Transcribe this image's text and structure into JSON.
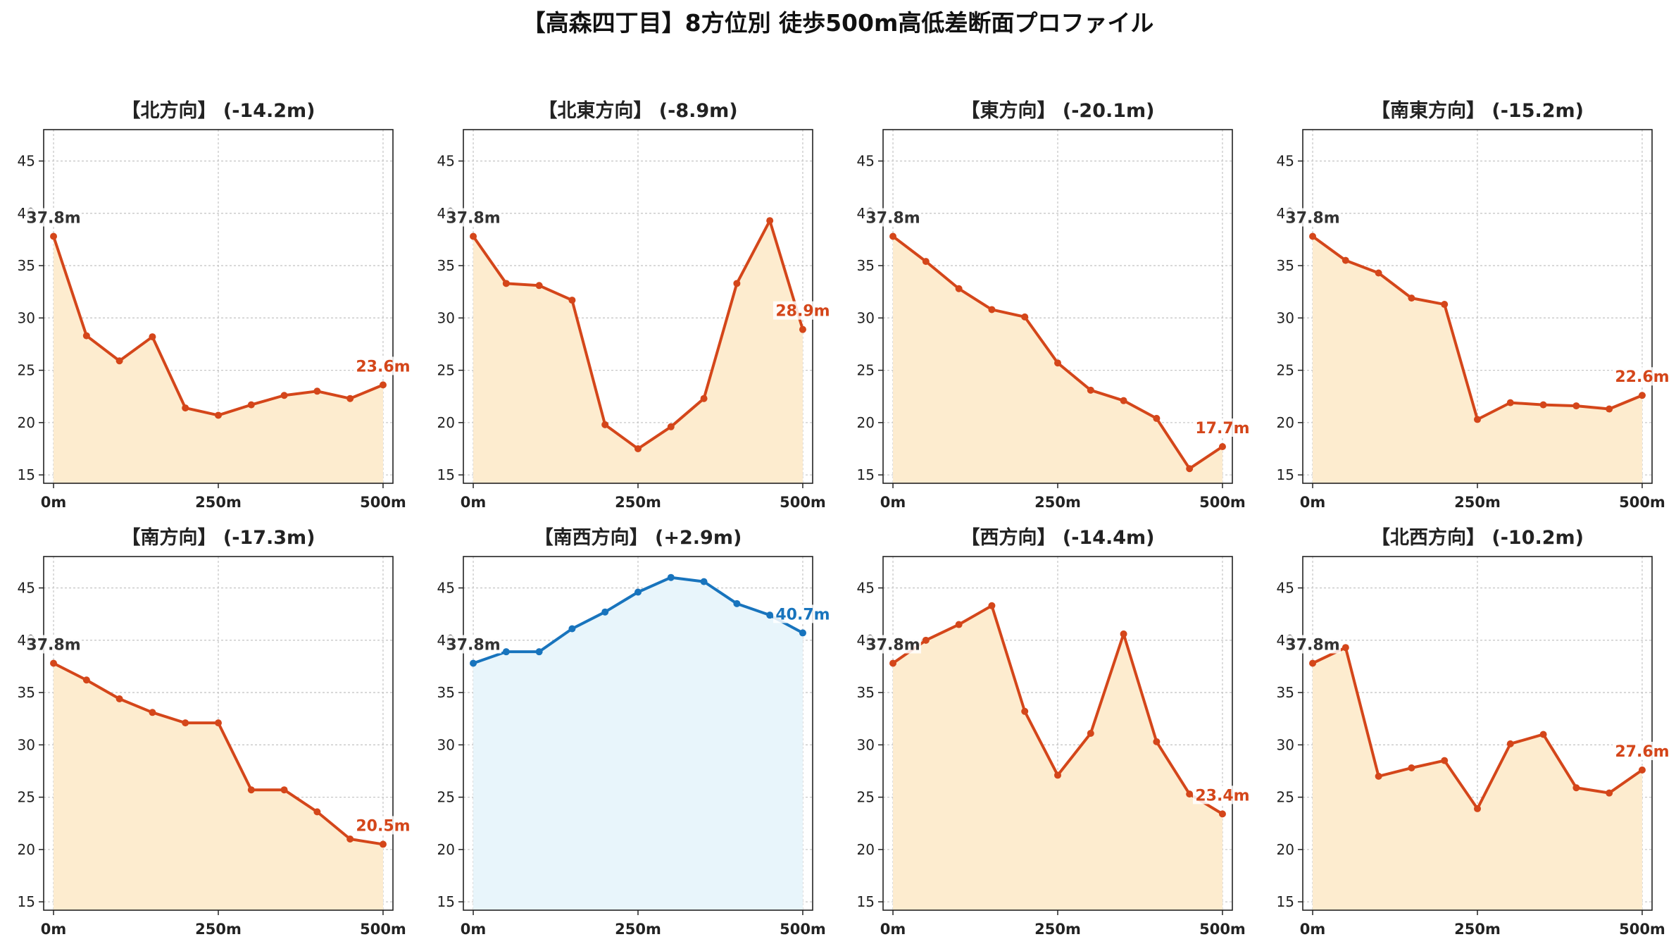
{
  "figure_title": "【高森四丁目】8方位別 徒歩500m高低差断面プロファイル",
  "colors": {
    "down": "#d4461a",
    "up": "#1874bd",
    "fill_down": "#fdeccf",
    "fill_up": "#e8f5fb",
    "start_label": "#333333",
    "grid": "#c8c8c8"
  },
  "chart_data": [
    {
      "type": "area",
      "title": "【北方向】 (-14.2m)",
      "x": [
        0,
        50,
        100,
        150,
        200,
        250,
        300,
        350,
        400,
        450,
        500
      ],
      "values": [
        37.8,
        28.3,
        25.9,
        28.2,
        21.4,
        20.7,
        21.7,
        22.6,
        23.0,
        22.3,
        23.6
      ],
      "start_label": "37.8m",
      "end_label": "23.6m",
      "trend": "down",
      "ylim": [
        14.2,
        48
      ],
      "yticks": [
        15,
        20,
        25,
        30,
        35,
        40,
        45
      ],
      "xticks": [
        0,
        250,
        500
      ],
      "xtick_labels": [
        "0m",
        "250m",
        "500m"
      ],
      "grid": true
    },
    {
      "type": "area",
      "title": "【北東方向】 (-8.9m)",
      "x": [
        0,
        50,
        100,
        150,
        200,
        250,
        300,
        350,
        400,
        450,
        500
      ],
      "values": [
        37.8,
        33.3,
        33.1,
        31.7,
        19.8,
        17.5,
        19.6,
        22.3,
        33.3,
        39.3,
        28.9
      ],
      "start_label": "37.8m",
      "end_label": "28.9m",
      "trend": "down",
      "ylim": [
        14.2,
        48
      ],
      "yticks": [
        15,
        20,
        25,
        30,
        35,
        40,
        45
      ],
      "xticks": [
        0,
        250,
        500
      ],
      "xtick_labels": [
        "0m",
        "250m",
        "500m"
      ],
      "grid": true
    },
    {
      "type": "area",
      "title": "【東方向】 (-20.1m)",
      "x": [
        0,
        50,
        100,
        150,
        200,
        250,
        300,
        350,
        400,
        450,
        500
      ],
      "values": [
        37.8,
        35.4,
        32.8,
        30.8,
        30.1,
        25.7,
        23.1,
        22.1,
        20.4,
        15.6,
        17.7
      ],
      "start_label": "37.8m",
      "end_label": "17.7m",
      "trend": "down",
      "ylim": [
        14.2,
        48
      ],
      "yticks": [
        15,
        20,
        25,
        30,
        35,
        40,
        45
      ],
      "xticks": [
        0,
        250,
        500
      ],
      "xtick_labels": [
        "0m",
        "250m",
        "500m"
      ],
      "grid": true
    },
    {
      "type": "area",
      "title": "【南東方向】 (-15.2m)",
      "x": [
        0,
        50,
        100,
        150,
        200,
        250,
        300,
        350,
        400,
        450,
        500
      ],
      "values": [
        37.8,
        35.5,
        34.3,
        31.9,
        31.3,
        20.3,
        21.9,
        21.7,
        21.6,
        21.3,
        22.6
      ],
      "start_label": "37.8m",
      "end_label": "22.6m",
      "trend": "down",
      "ylim": [
        14.2,
        48
      ],
      "yticks": [
        15,
        20,
        25,
        30,
        35,
        40,
        45
      ],
      "xticks": [
        0,
        250,
        500
      ],
      "xtick_labels": [
        "0m",
        "250m",
        "500m"
      ],
      "grid": true
    },
    {
      "type": "area",
      "title": "【南方向】 (-17.3m)",
      "x": [
        0,
        50,
        100,
        150,
        200,
        250,
        300,
        350,
        400,
        450,
        500
      ],
      "values": [
        37.8,
        36.2,
        34.4,
        33.1,
        32.1,
        32.1,
        25.7,
        25.7,
        23.6,
        21.0,
        20.5
      ],
      "start_label": "37.8m",
      "end_label": "20.5m",
      "trend": "down",
      "ylim": [
        14.2,
        48
      ],
      "yticks": [
        15,
        20,
        25,
        30,
        35,
        40,
        45
      ],
      "xticks": [
        0,
        250,
        500
      ],
      "xtick_labels": [
        "0m",
        "250m",
        "500m"
      ],
      "grid": true
    },
    {
      "type": "area",
      "title": "【南西方向】 (+2.9m)",
      "x": [
        0,
        50,
        100,
        150,
        200,
        250,
        300,
        350,
        400,
        450,
        500
      ],
      "values": [
        37.8,
        38.9,
        38.9,
        41.1,
        42.7,
        44.6,
        46.0,
        45.6,
        43.5,
        42.4,
        40.7
      ],
      "start_label": "37.8m",
      "end_label": "40.7m",
      "trend": "up",
      "ylim": [
        14.2,
        48
      ],
      "yticks": [
        15,
        20,
        25,
        30,
        35,
        40,
        45
      ],
      "xticks": [
        0,
        250,
        500
      ],
      "xtick_labels": [
        "0m",
        "250m",
        "500m"
      ],
      "grid": true
    },
    {
      "type": "area",
      "title": "【西方向】 (-14.4m)",
      "x": [
        0,
        50,
        100,
        150,
        200,
        250,
        300,
        350,
        400,
        450,
        500
      ],
      "values": [
        37.8,
        40.0,
        41.5,
        43.3,
        33.2,
        27.1,
        31.1,
        40.6,
        30.3,
        25.3,
        23.4
      ],
      "start_label": "37.8m",
      "end_label": "23.4m",
      "trend": "down",
      "ylim": [
        14.2,
        48
      ],
      "yticks": [
        15,
        20,
        25,
        30,
        35,
        40,
        45
      ],
      "xticks": [
        0,
        250,
        500
      ],
      "xtick_labels": [
        "0m",
        "250m",
        "500m"
      ],
      "grid": true
    },
    {
      "type": "area",
      "title": "【北西方向】 (-10.2m)",
      "x": [
        0,
        50,
        100,
        150,
        200,
        250,
        300,
        350,
        400,
        450,
        500
      ],
      "values": [
        37.8,
        39.3,
        27.0,
        27.8,
        28.5,
        23.9,
        30.1,
        31.0,
        25.9,
        25.4,
        27.6
      ],
      "start_label": "37.8m",
      "end_label": "27.6m",
      "trend": "down",
      "ylim": [
        14.2,
        48
      ],
      "yticks": [
        15,
        20,
        25,
        30,
        35,
        40,
        45
      ],
      "xticks": [
        0,
        250,
        500
      ],
      "xtick_labels": [
        "0m",
        "250m",
        "500m"
      ],
      "grid": true
    }
  ]
}
